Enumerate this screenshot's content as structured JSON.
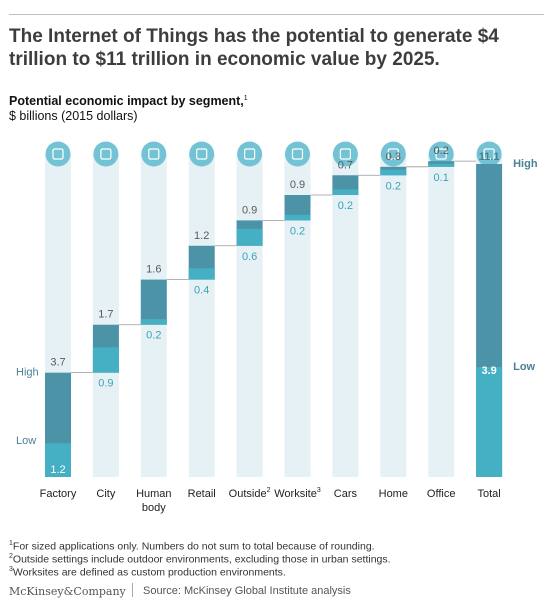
{
  "header": {
    "title": "The Internet of Things has the potential to generate $4 trillion to $11 trillion in economic value by 2025.",
    "subtitle": "Potential economic impact by segment,",
    "subtitle_sup": "1",
    "units": "$ billions (2015 dollars)"
  },
  "colors": {
    "column_bg": "#e6f1f6",
    "icon_circle": "#74c3d4",
    "high_bar": "#4d93a8",
    "low_bar": "#45afc3",
    "label_dark": "#5a5a5a",
    "label_teal": "#3aa3b8",
    "total_label": "#ffffff",
    "side_label": "#4a7f94"
  },
  "chart_data": {
    "type": "bar",
    "subtype": "waterfall-range",
    "title": "Potential economic impact by segment",
    "ylabel": "$ billions (2015 dollars)",
    "categories": [
      "Factory",
      "City",
      "Human body",
      "Retail",
      "Outside",
      "Worksite",
      "Cars",
      "Home",
      "Office",
      "Total"
    ],
    "category_labels": [
      {
        "text": "Factory",
        "sup": ""
      },
      {
        "text": "City",
        "sup": ""
      },
      {
        "text": "Human body",
        "sup": ""
      },
      {
        "text": "Retail",
        "sup": ""
      },
      {
        "text": "Outside",
        "sup": "2"
      },
      {
        "text": "Worksite",
        "sup": "3"
      },
      {
        "text": "Cars",
        "sup": ""
      },
      {
        "text": "Home",
        "sup": ""
      },
      {
        "text": "Office",
        "sup": ""
      },
      {
        "text": "Total",
        "sup": ""
      }
    ],
    "icons": [
      "factory-icon",
      "city-icon",
      "human-body-icon",
      "retail-icon",
      "outside-icon",
      "worksite-icon",
      "cars-icon",
      "home-icon",
      "office-icon",
      "total-icon"
    ],
    "series": [
      {
        "name": "High",
        "values": [
          3.7,
          1.7,
          1.6,
          1.2,
          0.9,
          0.9,
          0.7,
          0.3,
          0.2,
          11.1
        ]
      },
      {
        "name": "Low",
        "values": [
          1.2,
          0.9,
          0.2,
          0.4,
          0.6,
          0.2,
          0.2,
          0.2,
          0.1,
          3.9
        ]
      }
    ],
    "value_labels": {
      "high": [
        "3.7",
        "1.7",
        "1.6",
        "1.2",
        "0.9",
        "0.9",
        "0.7",
        "0.3",
        "0.2",
        "11.1"
      ],
      "low": [
        "1.2",
        "0.9",
        "0.2",
        "0.4",
        "0.6",
        "0.2",
        "0.2",
        "0.2",
        "0.1",
        "3.9"
      ]
    },
    "side_labels": {
      "left_high": "High",
      "left_low": "Low",
      "right_high": "High",
      "right_low": "Low"
    },
    "ylim": [
      0,
      11.1
    ],
    "grid": false
  },
  "footnotes": [
    {
      "sup": "1",
      "text": "For sized applications only. Numbers do not sum to total because of rounding."
    },
    {
      "sup": "2",
      "text": "Outside settings include outdoor environments, excluding those in urban settings."
    },
    {
      "sup": "3",
      "text": "Worksites are defined as custom production environments."
    }
  ],
  "footer": {
    "logo": "McKinsey&Company",
    "source": "Source: McKinsey Global Institute analysis"
  }
}
